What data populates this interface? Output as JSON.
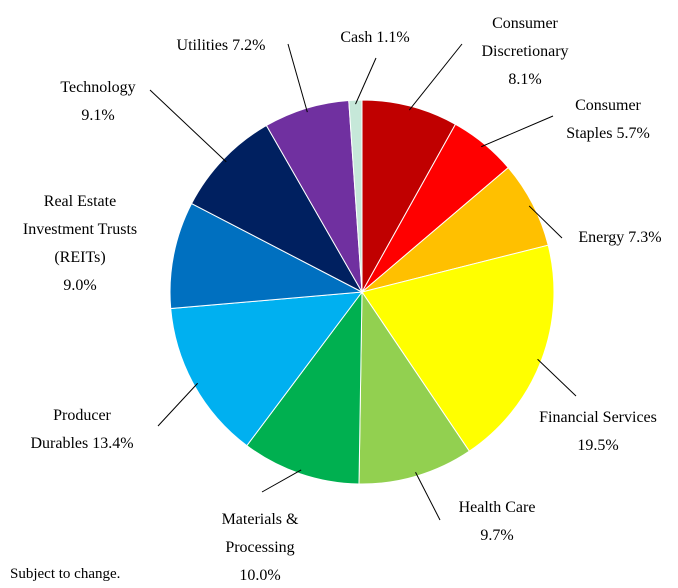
{
  "chart_data": {
    "type": "pie",
    "categories": [
      "Consumer Discretionary",
      "Consumer Staples",
      "Energy",
      "Financial Services",
      "Health Care",
      "Materials & Processing",
      "Producer Durables",
      "Real Estate Investment Trusts (REITs)",
      "Technology",
      "Utilities",
      "Cash"
    ],
    "values": [
      8.1,
      5.7,
      7.3,
      19.5,
      9.7,
      10.0,
      13.4,
      9.0,
      9.1,
      7.2,
      1.1
    ],
    "value_labels": [
      "8.1%",
      "5.7%",
      "7.3%",
      "19.5%",
      "9.7%",
      "10.0%",
      "13.4%",
      "9.0%",
      "9.1%",
      "7.2%",
      "1.1%"
    ],
    "colors": [
      "#c00000",
      "#ff0000",
      "#ffc000",
      "#ffff00",
      "#92d050",
      "#00b050",
      "#00b0f0",
      "#0070c0",
      "#002060",
      "#7030a0",
      "#c6e8d9"
    ]
  },
  "note": "Subject to change."
}
